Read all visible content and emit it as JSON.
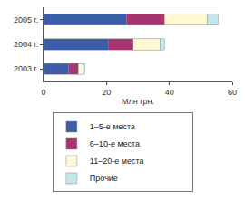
{
  "chart_data": {
    "type": "bar",
    "orientation": "horizontal",
    "stacked": true,
    "categories": [
      "2003 г.",
      "2004 г.",
      "2005 г."
    ],
    "series": [
      {
        "name": "1–5-е места",
        "color": "#3c5ea8",
        "values": [
          8,
          20.5,
          26.5
        ]
      },
      {
        "name": "6–10-е места",
        "color": "#a8336e",
        "values": [
          3,
          8,
          12
        ]
      },
      {
        "name": "11–20-е места",
        "color": "#fff8d2",
        "values": [
          1.5,
          8.5,
          13.5
        ]
      },
      {
        "name": "Прочие",
        "color": "#c4e6ec",
        "values": [
          0.5,
          1.5,
          3.5
        ]
      }
    ],
    "x_label": "Млн грн.",
    "xlim": [
      0,
      60
    ],
    "xticks": [
      0,
      20,
      40,
      60
    ],
    "grid": false,
    "legend": "bottom"
  }
}
